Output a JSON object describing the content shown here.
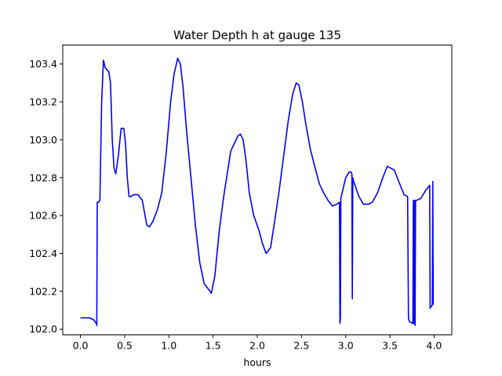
{
  "chart_data": {
    "type": "line",
    "title": "Water Depth h at gauge 135",
    "xlabel": "hours",
    "ylabel": "",
    "xlim": [
      -0.2,
      4.2
    ],
    "ylim": [
      101.97,
      103.5
    ],
    "grid": false,
    "xticks": [
      0.0,
      0.5,
      1.0,
      1.5,
      2.0,
      2.5,
      3.0,
      3.5,
      4.0
    ],
    "xtick_labels": [
      "0.0",
      "0.5",
      "1.0",
      "1.5",
      "2.0",
      "2.5",
      "3.0",
      "3.5",
      "4.0"
    ],
    "yticks": [
      102.0,
      102.2,
      102.4,
      102.6,
      102.8,
      103.0,
      103.2,
      103.4
    ],
    "ytick_labels": [
      "102.0",
      "102.2",
      "102.4",
      "102.6",
      "102.8",
      "103.0",
      "103.2",
      "103.4"
    ],
    "series": [
      {
        "color": "#0000ff",
        "x": [
          0.0,
          0.1,
          0.15,
          0.18,
          0.185,
          0.19,
          0.205,
          0.22,
          0.24,
          0.26,
          0.28,
          0.32,
          0.34,
          0.36,
          0.38,
          0.4,
          0.43,
          0.46,
          0.49,
          0.51,
          0.53,
          0.55,
          0.57,
          0.6,
          0.65,
          0.7,
          0.75,
          0.78,
          0.82,
          0.87,
          0.92,
          0.97,
          1.02,
          1.06,
          1.1,
          1.13,
          1.16,
          1.2,
          1.25,
          1.3,
          1.35,
          1.4,
          1.45,
          1.48,
          1.52,
          1.57,
          1.62,
          1.67,
          1.7,
          1.74,
          1.78,
          1.81,
          1.84,
          1.87,
          1.91,
          1.96,
          2.02,
          2.06,
          2.1,
          2.15,
          2.2,
          2.25,
          2.3,
          2.35,
          2.4,
          2.44,
          2.47,
          2.51,
          2.55,
          2.6,
          2.65,
          2.7,
          2.75,
          2.8,
          2.85,
          2.9,
          2.93,
          2.935,
          2.94,
          2.945,
          2.95,
          2.965,
          3.0,
          3.04,
          3.06,
          3.07,
          3.075,
          3.08,
          3.09,
          3.15,
          3.2,
          3.26,
          3.3,
          3.36,
          3.42,
          3.47,
          3.51,
          3.55,
          3.6,
          3.66,
          3.7,
          3.71,
          3.72,
          3.76,
          3.765,
          3.77,
          3.78,
          3.785,
          3.79,
          3.8,
          3.85,
          3.9,
          3.95,
          3.955,
          3.96,
          3.97,
          3.98,
          3.985,
          3.99
        ],
        "y": [
          102.06,
          102.06,
          102.05,
          102.03,
          102.02,
          102.67,
          102.67,
          102.68,
          103.2,
          103.42,
          103.38,
          103.36,
          103.3,
          103.0,
          102.85,
          102.82,
          102.92,
          103.06,
          103.06,
          102.98,
          102.8,
          102.7,
          102.7,
          102.71,
          102.71,
          102.68,
          102.55,
          102.54,
          102.57,
          102.63,
          102.72,
          102.93,
          103.2,
          103.35,
          103.43,
          103.4,
          103.28,
          103.05,
          102.8,
          102.55,
          102.35,
          102.24,
          102.21,
          102.19,
          102.28,
          102.52,
          102.7,
          102.85,
          102.94,
          102.98,
          103.02,
          103.03,
          103.0,
          102.9,
          102.72,
          102.6,
          102.52,
          102.45,
          102.4,
          102.43,
          102.58,
          102.74,
          102.92,
          103.1,
          103.24,
          103.3,
          103.29,
          103.2,
          103.08,
          102.95,
          102.86,
          102.77,
          102.72,
          102.68,
          102.65,
          102.66,
          102.67,
          102.03,
          102.06,
          102.69,
          102.7,
          102.73,
          102.8,
          102.83,
          102.83,
          102.82,
          102.16,
          102.8,
          102.78,
          102.7,
          102.66,
          102.66,
          102.67,
          102.72,
          102.8,
          102.86,
          102.85,
          102.84,
          102.78,
          102.71,
          102.7,
          102.06,
          102.04,
          102.03,
          102.68,
          102.03,
          102.68,
          102.02,
          102.68,
          102.68,
          102.69,
          102.73,
          102.76,
          102.11,
          102.12,
          102.12,
          102.13,
          102.78,
          102.13
        ]
      }
    ]
  }
}
